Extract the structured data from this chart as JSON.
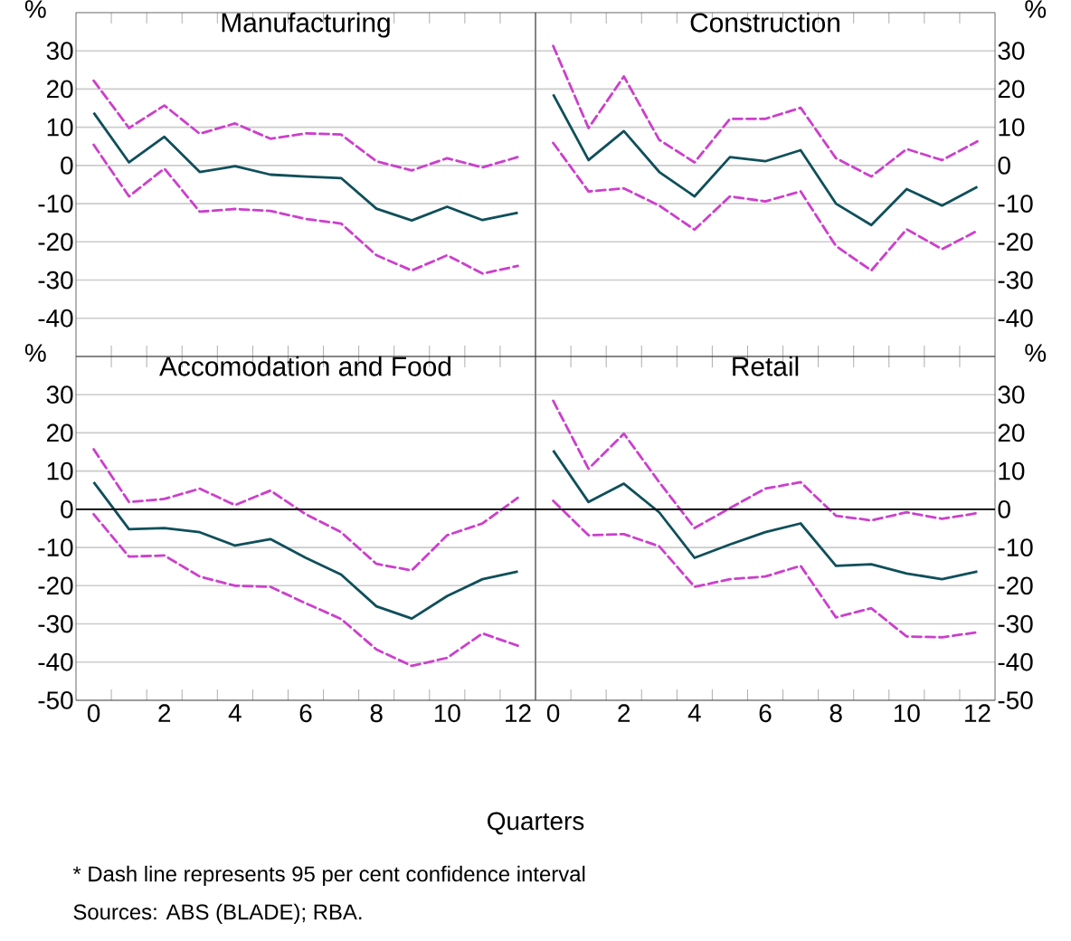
{
  "chart_data": [
    {
      "type": "line",
      "title": "Manufacturing",
      "ylabel": "%",
      "x": [
        0,
        1,
        2,
        3,
        4,
        5,
        6,
        7,
        8,
        9,
        10,
        11,
        12
      ],
      "xlim": [
        -0.5,
        12.5
      ],
      "ylim": [
        -50,
        40
      ],
      "xticks": [
        0,
        {
          "value": 0.5,
          "label": null
        },
        {
          "value": 1.5,
          "label": null
        },
        2,
        {
          "value": 2.5,
          "label": null
        },
        {
          "value": 3.5,
          "label": null
        },
        4,
        {
          "value": 4.5,
          "label": null
        },
        {
          "value": 5.5,
          "label": null
        },
        6,
        {
          "value": 6.5,
          "label": null
        },
        {
          "value": 7.5,
          "label": null
        },
        8,
        {
          "value": 8.5,
          "label": null
        },
        {
          "value": 9.5,
          "label": null
        },
        10,
        {
          "value": 10.5,
          "label": null
        },
        {
          "value": 11.5,
          "label": null
        },
        12
      ],
      "yticks": [
        30,
        20,
        10,
        0,
        -10,
        -20,
        -30,
        -40
      ],
      "grid": "y",
      "tick_labels": "y",
      "series": [
        {
          "color": "#cc3fcc",
          "line_style": "dashed",
          "values": [
            22.2,
            9.8,
            15.7,
            8.3,
            11,
            7,
            8.4,
            8.1,
            1.1,
            -1.3,
            1.9,
            -0.5,
            2.2
          ]
        },
        {
          "color": "#0f4f5a",
          "line_style": "solid",
          "values": [
            13.8,
            0.8,
            7.5,
            -1.7,
            -0.2,
            -2.4,
            -2.9,
            -3.3,
            -11.3,
            -14.4,
            -10.8,
            -14.3,
            -12.4
          ]
        },
        {
          "color": "#cc3fcc",
          "line_style": "dashed",
          "values": [
            5.4,
            -8.1,
            -0.8,
            -12.1,
            -11.4,
            -11.9,
            -14,
            -15.2,
            -23.5,
            -27.5,
            -23.5,
            -28.3,
            -26.3
          ]
        }
      ]
    },
    {
      "type": "line",
      "title": "Construction",
      "ylabel": "%",
      "x": [
        0,
        1,
        2,
        3,
        4,
        5,
        6,
        7,
        8,
        9,
        10,
        11,
        12
      ],
      "xlim": [
        -0.5,
        12.5
      ],
      "ylim": [
        -50,
        40
      ],
      "xticks": [
        0,
        {
          "value": 0.5,
          "label": null
        },
        {
          "value": 1.5,
          "label": null
        },
        2,
        {
          "value": 2.5,
          "label": null
        },
        {
          "value": 3.5,
          "label": null
        },
        4,
        {
          "value": 4.5,
          "label": null
        },
        {
          "value": 5.5,
          "label": null
        },
        6,
        {
          "value": 6.5,
          "label": null
        },
        {
          "value": 7.5,
          "label": null
        },
        8,
        {
          "value": 8.5,
          "label": null
        },
        {
          "value": 9.5,
          "label": null
        },
        10,
        {
          "value": 10.5,
          "label": null
        },
        {
          "value": 11.5,
          "label": null
        },
        12
      ],
      "yticks": [
        30,
        20,
        10,
        0,
        -10,
        -20,
        -30,
        -40
      ],
      "grid": "y",
      "tick_labels": "y",
      "series": [
        {
          "color": "#cc3fcc",
          "line_style": "dashed",
          "values": [
            31.3,
            9.8,
            23.3,
            6.7,
            0.8,
            12.2,
            12.2,
            15.1,
            1.9,
            -2.9,
            4.3,
            1.4,
            6.3
          ]
        },
        {
          "color": "#0f4f5a",
          "line_style": "solid",
          "values": [
            18.6,
            1.4,
            9,
            -1.7,
            -8.1,
            2.2,
            1.1,
            4,
            -10,
            -15.6,
            -6.2,
            -10.5,
            -5.6
          ]
        },
        {
          "color": "#cc3fcc",
          "line_style": "dashed",
          "values": [
            5.9,
            -6.8,
            -6,
            -10.5,
            -16.8,
            -8.1,
            -9.4,
            -6.8,
            -21.1,
            -27.5,
            -16.7,
            -21.9,
            -17.1
          ]
        }
      ]
    },
    {
      "type": "line",
      "title": "Accomodation and Food",
      "ylabel": "%",
      "xlabel": "Quarters",
      "x": [
        0,
        1,
        2,
        3,
        4,
        5,
        6,
        7,
        8,
        9,
        10,
        11,
        12
      ],
      "xlim": [
        -0.5,
        12.5
      ],
      "ylim": [
        -50,
        40
      ],
      "xticks": [
        0,
        {
          "value": 0.5,
          "label": null
        },
        {
          "value": 1.5,
          "label": null
        },
        2,
        {
          "value": 2.5,
          "label": null
        },
        {
          "value": 3.5,
          "label": null
        },
        4,
        {
          "value": 4.5,
          "label": null
        },
        {
          "value": 5.5,
          "label": null
        },
        6,
        {
          "value": 6.5,
          "label": null
        },
        {
          "value": 7.5,
          "label": null
        },
        8,
        {
          "value": 8.5,
          "label": null
        },
        {
          "value": 9.5,
          "label": null
        },
        10,
        {
          "value": 10.5,
          "label": null
        },
        {
          "value": 11.5,
          "label": null
        },
        12
      ],
      "yticks": [
        30,
        20,
        10,
        0,
        -10,
        -20,
        -30,
        -40,
        -50
      ],
      "grid": "y",
      "ref_lines": [
        {
          "axis": "y",
          "value": 0
        }
      ],
      "annotations": [
        "* Dash line represents 95 per cent confidence interval",
        "Sources: ABS (BLADE); RBA."
      ],
      "series": [
        {
          "color": "#cc3fcc",
          "line_style": "dashed",
          "values": [
            15.7,
            1.9,
            2.7,
            5.4,
            1.1,
            4.9,
            -1.3,
            -6,
            -14.3,
            -16,
            -6.8,
            -3.7,
            3
          ]
        },
        {
          "color": "#0f4f5a",
          "line_style": "solid",
          "values": [
            7.1,
            -5.2,
            -4.9,
            -6,
            -9.5,
            -7.8,
            -12.7,
            -17.1,
            -25.4,
            -28.6,
            -22.7,
            -18.3,
            -16.3
          ]
        },
        {
          "color": "#cc3fcc",
          "line_style": "dashed",
          "values": [
            -1.3,
            -12.4,
            -12.1,
            -17.6,
            -20,
            -20.3,
            -24.6,
            -28.7,
            -36.7,
            -41,
            -38.9,
            -32.5,
            -35.7
          ]
        }
      ]
    },
    {
      "type": "line",
      "title": "Retail",
      "ylabel": "%",
      "x": [
        0,
        1,
        2,
        3,
        4,
        5,
        6,
        7,
        8,
        9,
        10,
        11,
        12
      ],
      "xlim": [
        -0.5,
        12.5
      ],
      "ylim": [
        -50,
        40
      ],
      "xticks": [
        0,
        {
          "value": 0.5,
          "label": null
        },
        {
          "value": 1.5,
          "label": null
        },
        2,
        {
          "value": 2.5,
          "label": null
        },
        {
          "value": 3.5,
          "label": null
        },
        4,
        {
          "value": 4.5,
          "label": null
        },
        {
          "value": 5.5,
          "label": null
        },
        6,
        {
          "value": 6.5,
          "label": null
        },
        {
          "value": 7.5,
          "label": null
        },
        8,
        {
          "value": 8.5,
          "label": null
        },
        {
          "value": 9.5,
          "label": null
        },
        10,
        {
          "value": 10.5,
          "label": null
        },
        {
          "value": 11.5,
          "label": null
        },
        12
      ],
      "yticks": [
        30,
        20,
        10,
        0,
        -10,
        -20,
        -30,
        -40,
        -50
      ],
      "grid": "y",
      "ref_lines": [
        {
          "axis": "y",
          "value": 0
        }
      ],
      "series": [
        {
          "color": "#cc3fcc",
          "line_style": "dashed",
          "values": [
            28.4,
            10.6,
            19.8,
            7.1,
            -4.9,
            0.3,
            5.4,
            7.1,
            -1.7,
            -2.9,
            -0.8,
            -2.5,
            -1
          ]
        },
        {
          "color": "#0f4f5a",
          "line_style": "solid",
          "values": [
            15.4,
            1.9,
            6.7,
            -0.8,
            -12.7,
            -9.2,
            -6,
            -3.7,
            -14.8,
            -14.4,
            -16.8,
            -18.3,
            -16.3
          ]
        },
        {
          "color": "#cc3fcc",
          "line_style": "dashed",
          "values": [
            2.2,
            -6.8,
            -6.5,
            -9.7,
            -20.3,
            -18.3,
            -17.6,
            -14.8,
            -28.3,
            -25.9,
            -33.3,
            -33.5,
            -32.2
          ]
        }
      ]
    }
  ]
}
